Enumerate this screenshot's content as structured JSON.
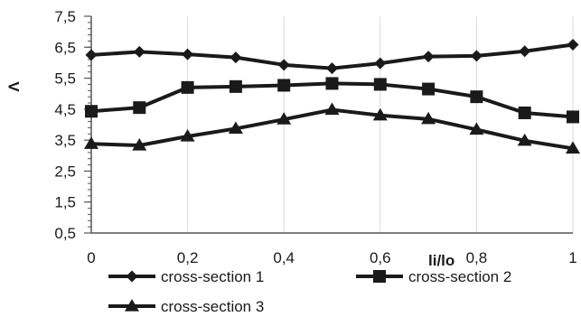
{
  "chart_data": {
    "type": "line",
    "title": "",
    "xlabel": "li/lo",
    "ylabel": "Λ",
    "x": [
      0,
      0.1,
      0.2,
      0.3,
      0.4,
      0.5,
      0.6,
      0.7,
      0.8,
      0.9,
      1
    ],
    "xlim": [
      0,
      1
    ],
    "ylim": [
      0.5,
      7.5
    ],
    "x_tick_values": [
      0,
      0.2,
      0.4,
      0.6,
      0.8,
      1
    ],
    "x_tick_labels": [
      "0",
      "0,2",
      "0,4",
      "0,6",
      "0,8",
      "1"
    ],
    "y_tick_values": [
      0.5,
      1.5,
      2.5,
      3.5,
      4.5,
      5.5,
      6.5,
      7.5
    ],
    "y_tick_labels": [
      "0,5",
      "1,5",
      "2,5",
      "3,5",
      "4,5",
      "5,5",
      "6,5",
      "7,5"
    ],
    "grid": "vertical",
    "legend_position": "bottom",
    "series": [
      {
        "name": "cross-section 1",
        "marker": "diamond",
        "values": [
          6.25,
          6.35,
          6.27,
          6.17,
          5.93,
          5.82,
          5.98,
          6.2,
          6.22,
          6.37,
          6.58
        ]
      },
      {
        "name": "cross-section 2",
        "marker": "square",
        "values": [
          4.43,
          4.55,
          5.2,
          5.23,
          5.27,
          5.33,
          5.3,
          5.15,
          4.9,
          4.38,
          4.25
        ]
      },
      {
        "name": "cross-section 3",
        "marker": "triangle",
        "values": [
          3.38,
          3.33,
          3.62,
          3.87,
          4.17,
          4.48,
          4.3,
          4.18,
          3.84,
          3.48,
          3.23
        ]
      }
    ],
    "line_color": "#1a1a1a",
    "grid_color": "#d9d9d9"
  }
}
